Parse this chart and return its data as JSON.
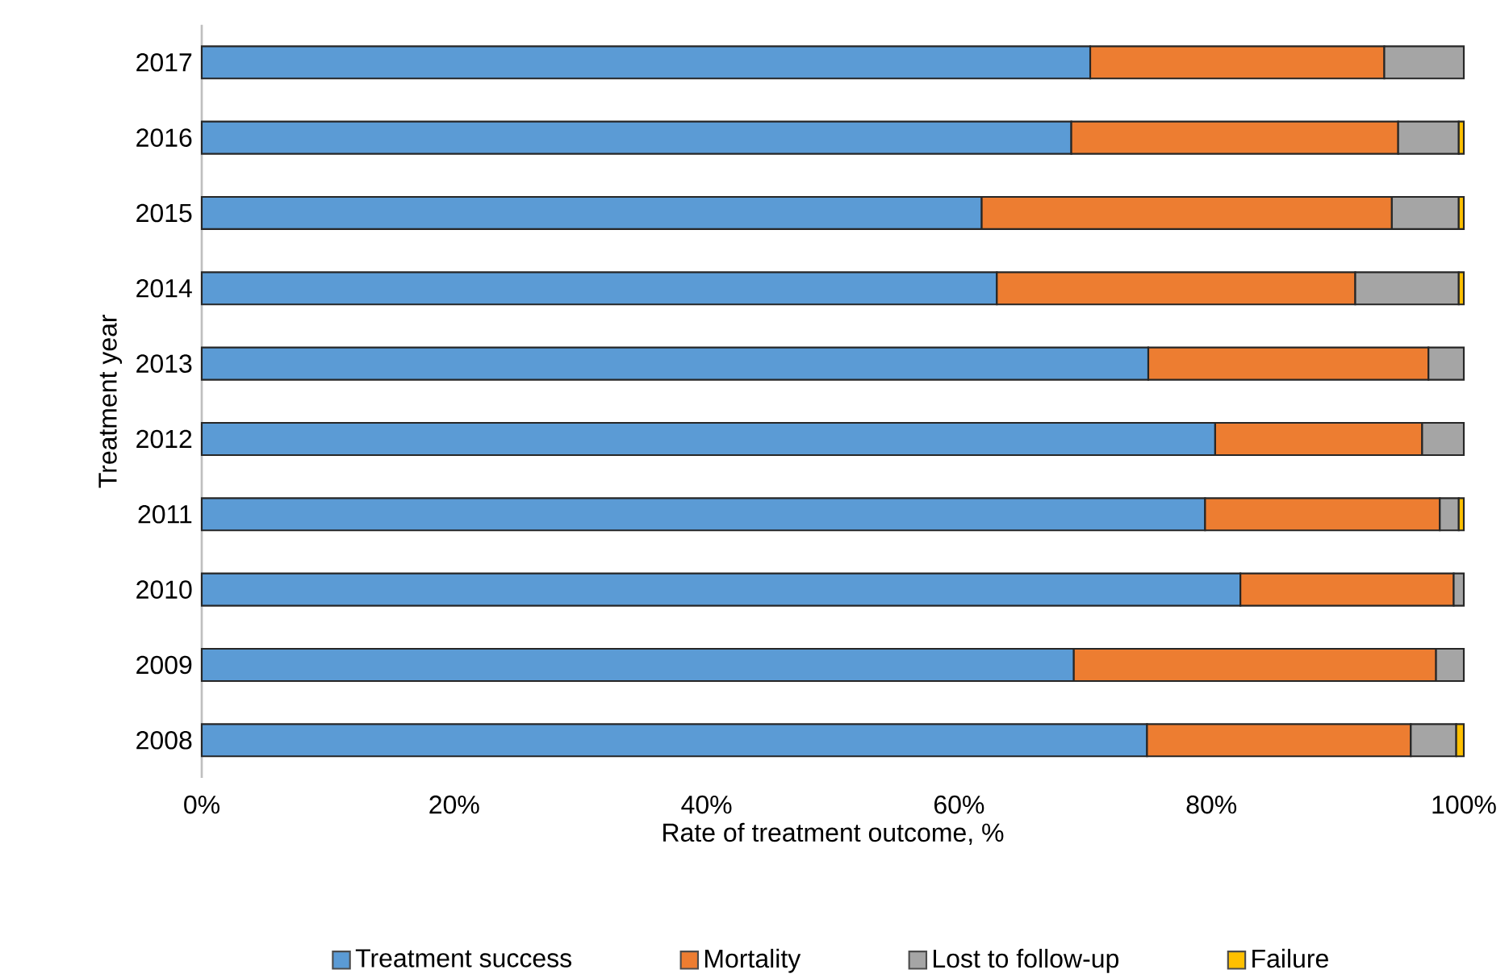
{
  "chart_data": {
    "type": "bar",
    "orientation": "horizontal",
    "stacked": true,
    "xlabel": "Rate of treatment outcome, %",
    "ylabel": "Treatment year",
    "categories": [
      "2017",
      "2016",
      "2015",
      "2014",
      "2013",
      "2012",
      "2011",
      "2010",
      "2009",
      "2008"
    ],
    "series": [
      {
        "name": "Treatment success",
        "color": "#5b9bd5",
        "values": [
          70.4,
          68.9,
          61.8,
          63.0,
          75.0,
          80.3,
          79.5,
          82.3,
          69.1,
          74.9
        ]
      },
      {
        "name": "Mortality",
        "color": "#ed7d31",
        "values": [
          23.3,
          25.9,
          32.5,
          28.4,
          22.2,
          16.4,
          18.6,
          16.9,
          28.7,
          20.9
        ]
      },
      {
        "name": "Lost to follow-up",
        "color": "#a5a5a5",
        "values": [
          6.3,
          4.8,
          5.3,
          8.2,
          2.8,
          3.3,
          1.5,
          0.8,
          2.2,
          3.6
        ]
      },
      {
        "name": "Failure",
        "color": "#ffc000",
        "values": [
          null,
          0.4,
          0.4,
          0.4,
          null,
          null,
          0.4,
          null,
          null,
          0.6
        ]
      }
    ],
    "xlim": [
      0,
      100
    ],
    "xticks": [
      {
        "value": 0,
        "label": "0%"
      },
      {
        "value": 20,
        "label": "20%"
      },
      {
        "value": 40,
        "label": "40%"
      },
      {
        "value": 60,
        "label": "60%"
      },
      {
        "value": 80,
        "label": "80%"
      },
      {
        "value": 100,
        "label": "100%"
      }
    ],
    "legend": "bottom"
  }
}
